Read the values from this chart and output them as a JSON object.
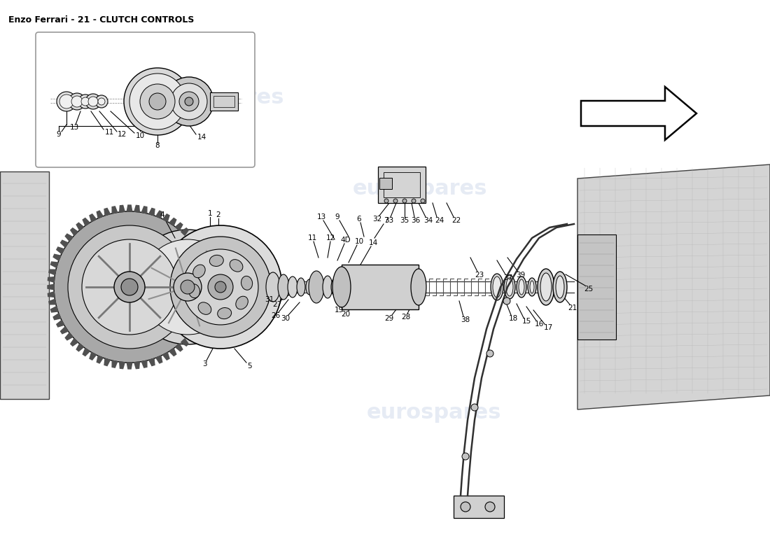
{
  "title": "Enzo Ferrari - 21 - CLUTCH CONTROLS",
  "title_fontsize": 9,
  "bg_color": "#ffffff",
  "watermark_text": "eurospares",
  "watermark_color": "#c8d4e8",
  "watermark_alpha": 0.45,
  "fig_width": 11.0,
  "fig_height": 8.0,
  "dpi": 100
}
